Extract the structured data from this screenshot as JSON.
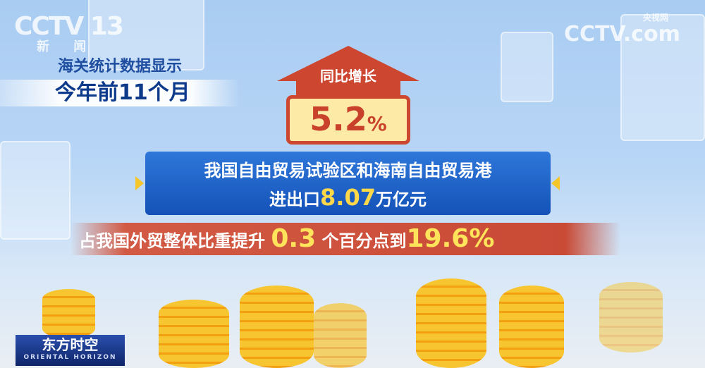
{
  "logo": {
    "channel": "CCTV 13",
    "channel_sub": "新 闻",
    "site": "CCTV.com",
    "site_sub": "央视网"
  },
  "headline": {
    "line1": "海关统计数据显示",
    "line2": "今年前11个月"
  },
  "growth": {
    "label": "同比增长",
    "value": "5.2",
    "unit": "%"
  },
  "main": {
    "line1": "我国自由贸易试验区和海南自由贸易港",
    "line2_prefix": "进出口",
    "line2_value": "8.07",
    "line2_suffix": "万亿元"
  },
  "share": {
    "prefix": "占我国外贸整体比重提升",
    "increase": "0.3",
    "middle": "个百分点到",
    "value": "19.6%"
  },
  "program": {
    "name": "东方时空",
    "name_en": "ORIENTAL HORIZON"
  },
  "colors": {
    "accent_red": "#cc4630",
    "blue_panel": "#1f64c8",
    "highlight_yellow": "#ffd84a"
  }
}
